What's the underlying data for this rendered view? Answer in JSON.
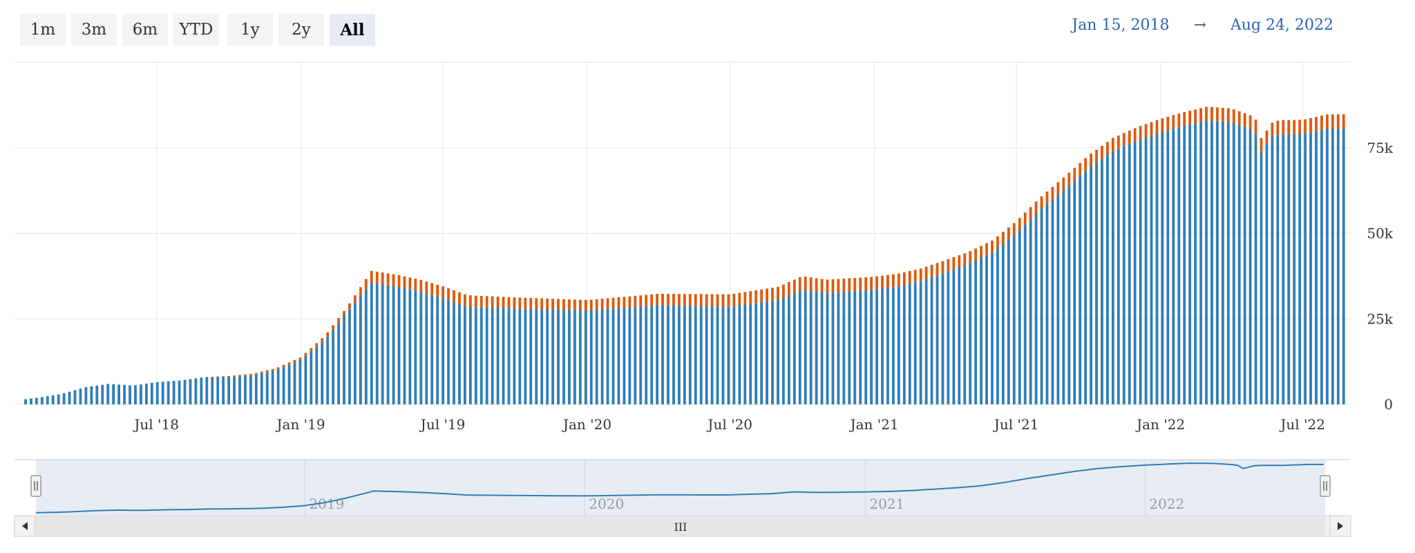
{
  "range_selector": {
    "buttons": [
      "1m",
      "3m",
      "6m",
      "YTD",
      "1y",
      "2y",
      "All"
    ],
    "selected": "All"
  },
  "date_range": {
    "from": "Jan 15, 2018",
    "arrow": "→",
    "to": "Aug 24, 2022"
  },
  "colors": {
    "series_blue": "#2e7db8",
    "series_orange": "#dd5a0c",
    "nav_fill": "#e8ecf5",
    "nav_line": "#2e7db8"
  },
  "navigator": {
    "labels": [
      "2019",
      "2020",
      "2021",
      "2022"
    ],
    "scroll_glyph": "III"
  },
  "chart_data": {
    "type": "bar",
    "stacked": true,
    "x_ticks": [
      "Jul '18",
      "Jan '19",
      "Jul '19",
      "Jan '20",
      "Jul '20",
      "Jan '21",
      "Jul '21",
      "Jan '22",
      "Jul '22"
    ],
    "y_ticks": [
      "0",
      "25k",
      "50k",
      "75k"
    ],
    "ylim": [
      0,
      100000
    ],
    "xlim": [
      "2018-01-15",
      "2022-08-24"
    ],
    "grid": true,
    "series": [
      {
        "color": "#2e7db8",
        "points": [
          [
            "2018-01-15",
            1500
          ],
          [
            "2018-02-01",
            2000
          ],
          [
            "2018-03-01",
            3000
          ],
          [
            "2018-04-01",
            5000
          ],
          [
            "2018-05-01",
            6000
          ],
          [
            "2018-06-01",
            5500
          ],
          [
            "2018-07-01",
            6500
          ],
          [
            "2018-08-01",
            7000
          ],
          [
            "2018-09-01",
            8000
          ],
          [
            "2018-10-01",
            8000
          ],
          [
            "2018-11-01",
            8500
          ],
          [
            "2018-12-01",
            10000
          ],
          [
            "2019-01-01",
            13000
          ],
          [
            "2019-02-01",
            19000
          ],
          [
            "2019-03-01",
            27000
          ],
          [
            "2019-04-01",
            35500
          ],
          [
            "2019-05-01",
            34500
          ],
          [
            "2019-06-01",
            33000
          ],
          [
            "2019-07-01",
            31000
          ],
          [
            "2019-08-01",
            28500
          ],
          [
            "2019-10-01",
            28000
          ],
          [
            "2020-01-01",
            27500
          ],
          [
            "2020-02-01",
            28000
          ],
          [
            "2020-04-01",
            29000
          ],
          [
            "2020-07-01",
            28500
          ],
          [
            "2020-08-01",
            29500
          ],
          [
            "2020-09-01",
            30500
          ],
          [
            "2020-10-01",
            33500
          ],
          [
            "2020-11-01",
            32500
          ],
          [
            "2021-01-01",
            33500
          ],
          [
            "2021-02-01",
            34500
          ],
          [
            "2021-03-01",
            36000
          ],
          [
            "2021-04-01",
            38500
          ],
          [
            "2021-05-01",
            41000
          ],
          [
            "2021-06-01",
            44500
          ],
          [
            "2021-07-01",
            50000
          ],
          [
            "2021-08-01",
            57000
          ],
          [
            "2021-09-01",
            63000
          ],
          [
            "2021-10-01",
            69000
          ],
          [
            "2021-11-01",
            74000
          ],
          [
            "2021-12-01",
            77000
          ],
          [
            "2022-01-01",
            79500
          ],
          [
            "2022-02-01",
            81500
          ],
          [
            "2022-03-01",
            83000
          ],
          [
            "2022-04-01",
            82500
          ],
          [
            "2022-05-01",
            80000
          ],
          [
            "2022-05-10",
            73000
          ],
          [
            "2022-05-20",
            78000
          ],
          [
            "2022-06-01",
            79000
          ],
          [
            "2022-07-01",
            79000
          ],
          [
            "2022-08-01",
            80500
          ],
          [
            "2022-08-24",
            80500
          ]
        ]
      },
      {
        "color": "#dd5a0c",
        "points": [
          [
            "2018-01-15",
            0
          ],
          [
            "2018-09-01",
            0
          ],
          [
            "2018-10-01",
            300
          ],
          [
            "2019-01-01",
            800
          ],
          [
            "2019-03-01",
            1500
          ],
          [
            "2019-04-01",
            3500
          ],
          [
            "2019-07-01",
            3500
          ],
          [
            "2020-01-01",
            3000
          ],
          [
            "2020-10-01",
            4000
          ],
          [
            "2021-06-01",
            3500
          ],
          [
            "2022-01-01",
            4000
          ],
          [
            "2022-05-01",
            4000
          ],
          [
            "2022-08-24",
            4300
          ]
        ]
      }
    ]
  }
}
